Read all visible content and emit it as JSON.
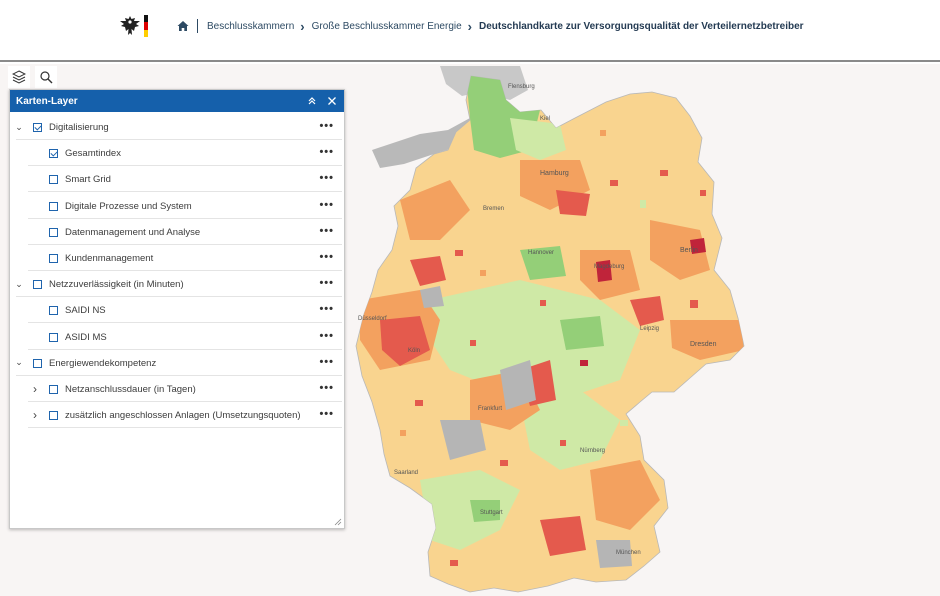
{
  "header": {
    "breadcrumb": [
      "Beschlusskammern",
      "Große Beschlusskammer Energie"
    ],
    "current": "Deutschlandkarte zur Versorgungsqualität der Verteilernetzbetreiber",
    "flag_colors": [
      "#111111",
      "#dd0000",
      "#ffce00"
    ]
  },
  "toolbar": {
    "layers_icon": "layers-icon",
    "search_icon": "search-icon"
  },
  "panel": {
    "title": "Karten-Layer",
    "collapse_icon": "chevron-double-up-icon",
    "close_icon": "close-icon",
    "more_label": "•••",
    "layers": [
      {
        "label": "Digitalisierung",
        "checked": true,
        "level": 0,
        "expand": "open"
      },
      {
        "label": "Gesamtindex",
        "checked": true,
        "level": 1,
        "expand": "none"
      },
      {
        "label": "Smart Grid",
        "checked": false,
        "level": 1,
        "expand": "none"
      },
      {
        "label": "Digitale Prozesse und System",
        "checked": false,
        "level": 1,
        "expand": "none"
      },
      {
        "label": "Datenmanagement und Analyse",
        "checked": false,
        "level": 1,
        "expand": "none"
      },
      {
        "label": "Kundenmanagement",
        "checked": false,
        "level": 1,
        "expand": "none"
      },
      {
        "label": "Netzzuverlässigkeit (in Minuten)",
        "checked": false,
        "level": 0,
        "expand": "open"
      },
      {
        "label": "SAIDI NS",
        "checked": false,
        "level": 1,
        "expand": "none"
      },
      {
        "label": "ASIDI MS",
        "checked": false,
        "level": 1,
        "expand": "none"
      },
      {
        "label": "Energiewendekompetenz",
        "checked": false,
        "level": 0,
        "expand": "open"
      },
      {
        "label": "Netzanschlussdauer (in Tagen)",
        "checked": false,
        "level": 1,
        "expand": "closed"
      },
      {
        "label": "zusätzlich angeschlossen Anlagen (Umsetzungsquoten)",
        "checked": false,
        "level": 1,
        "expand": "closed"
      }
    ]
  },
  "map": {
    "colors": {
      "base": "#f9d48f",
      "orange": "#f3a15f",
      "red": "#e45a4d",
      "darkred": "#c0243a",
      "lightgreen": "#cfe9a6",
      "green": "#94cf78",
      "grey": "#b5b5b5",
      "neighbor": "#cdcdcd"
    },
    "labels": [
      "Flensburg",
      "Kiel",
      "Hamburg",
      "Bremen",
      "Hannover",
      "Berlin",
      "Magdeburg",
      "Leipzig",
      "Dresden",
      "Düsseldorf",
      "Köln",
      "Frankfurt",
      "Nürnberg",
      "Stuttgart",
      "München",
      "Saarland"
    ]
  }
}
